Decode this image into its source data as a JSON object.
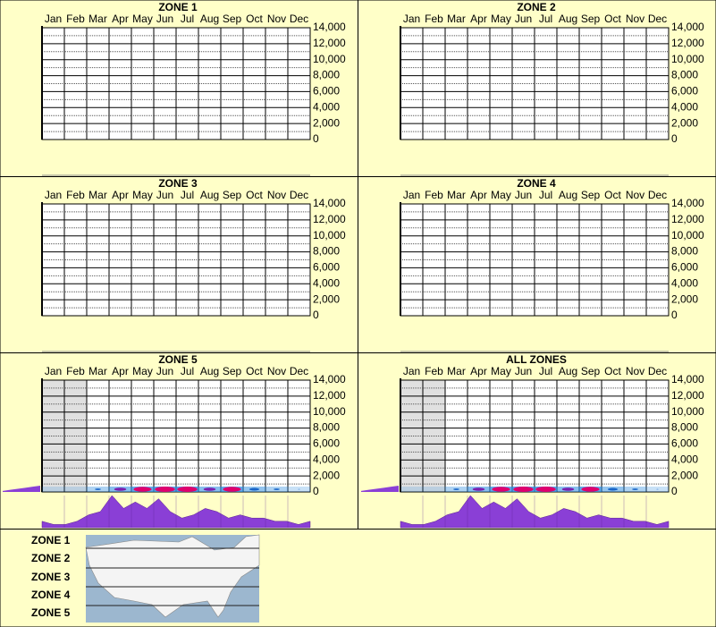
{
  "chart_data": [
    {
      "type": "heatmap",
      "title": "ZONE 1",
      "categories": [
        "Jan",
        "Feb",
        "Mar",
        "Apr",
        "May",
        "Jun",
        "Jul",
        "Aug",
        "Sep",
        "Oct",
        "Nov",
        "Dec"
      ],
      "ylim": [
        0,
        14000
      ],
      "yticks": [
        0,
        {
          "value": 2000,
          "label": "2,000"
        },
        {
          "value": 4000,
          "label": "4,000"
        },
        {
          "value": 6000,
          "label": "6,000"
        },
        {
          "value": 8000,
          "label": "8,000"
        },
        {
          "value": 10000,
          "label": "10,000"
        },
        {
          "value": 12000,
          "label": "12,000"
        },
        {
          "value": 14000,
          "label": "14,000"
        }
      ],
      "grid": true
    },
    {
      "type": "heatmap",
      "title": "ZONE 2",
      "categories": [
        "Jan",
        "Feb",
        "Mar",
        "Apr",
        "May",
        "Jun",
        "Jul",
        "Aug",
        "Sep",
        "Oct",
        "Nov",
        "Dec"
      ],
      "ylim": [
        0,
        14000
      ],
      "yticks": [
        0,
        {
          "value": 2000,
          "label": "2,000"
        },
        {
          "value": 4000,
          "label": "4,000"
        },
        {
          "value": 6000,
          "label": "6,000"
        },
        {
          "value": 8000,
          "label": "8,000"
        },
        {
          "value": 10000,
          "label": "10,000"
        },
        {
          "value": 12000,
          "label": "12,000"
        },
        {
          "value": 14000,
          "label": "14,000"
        }
      ],
      "grid": true
    },
    {
      "type": "heatmap",
      "title": "ZONE 3",
      "categories": [
        "Jan",
        "Feb",
        "Mar",
        "Apr",
        "May",
        "Jun",
        "Jul",
        "Aug",
        "Sep",
        "Oct",
        "Nov",
        "Dec"
      ],
      "ylim": [
        0,
        14000
      ],
      "yticks": [
        0,
        {
          "value": 2000,
          "label": "2,000"
        },
        {
          "value": 4000,
          "label": "4,000"
        },
        {
          "value": 6000,
          "label": "6,000"
        },
        {
          "value": 8000,
          "label": "8,000"
        },
        {
          "value": 10000,
          "label": "10,000"
        },
        {
          "value": 12000,
          "label": "12,000"
        },
        {
          "value": 14000,
          "label": "14,000"
        }
      ],
      "grid": true
    },
    {
      "type": "heatmap",
      "title": "ZONE 4",
      "categories": [
        "Jan",
        "Feb",
        "Mar",
        "Apr",
        "May",
        "Jun",
        "Jul",
        "Aug",
        "Sep",
        "Oct",
        "Nov",
        "Dec"
      ],
      "ylim": [
        0,
        14000
      ],
      "yticks": [
        0,
        {
          "value": 2000,
          "label": "2,000"
        },
        {
          "value": 4000,
          "label": "4,000"
        },
        {
          "value": 6000,
          "label": "6,000"
        },
        {
          "value": 8000,
          "label": "8,000"
        },
        {
          "value": 10000,
          "label": "10,000"
        },
        {
          "value": 12000,
          "label": "12,000"
        },
        {
          "value": 14000,
          "label": "14,000"
        }
      ],
      "grid": true
    },
    {
      "type": "heatmap",
      "title": "ZONE 5",
      "categories": [
        "Jan",
        "Feb",
        "Mar",
        "Apr",
        "May",
        "Jun",
        "Jul",
        "Aug",
        "Sep",
        "Oct",
        "Nov",
        "Dec"
      ],
      "ylim": [
        0,
        14000
      ],
      "yticks": [
        0,
        {
          "value": 2000,
          "label": "2,000"
        },
        {
          "value": 4000,
          "label": "4,000"
        },
        {
          "value": 6000,
          "label": "6,000"
        },
        {
          "value": 8000,
          "label": "8,000"
        },
        {
          "value": 10000,
          "label": "10,000"
        },
        {
          "value": 12000,
          "label": "12,000"
        },
        {
          "value": 14000,
          "label": "14,000"
        }
      ],
      "grid": true,
      "shaded_categories": [
        "Jan",
        "Feb"
      ],
      "surface_intensity": [
        0,
        0,
        0.3,
        0.6,
        0.9,
        1,
        1,
        0.6,
        0.9,
        0.5,
        0.3,
        0.1
      ],
      "monthly_profile": [
        2,
        1,
        1,
        2,
        4,
        5,
        10,
        6,
        8,
        6,
        9,
        5,
        3,
        4,
        6,
        5,
        3,
        4,
        3,
        3,
        2,
        2,
        1,
        2
      ],
      "surface_profile": [
        1,
        2,
        3,
        4,
        5,
        6
      ],
      "color": "#8a3fd6"
    },
    {
      "type": "heatmap",
      "title": "ALL ZONES",
      "categories": [
        "Jan",
        "Feb",
        "Mar",
        "Apr",
        "May",
        "Jun",
        "Jul",
        "Aug",
        "Sep",
        "Oct",
        "Nov",
        "Dec"
      ],
      "ylim": [
        0,
        14000
      ],
      "yticks": [
        0,
        {
          "value": 2000,
          "label": "2,000"
        },
        {
          "value": 4000,
          "label": "4,000"
        },
        {
          "value": 6000,
          "label": "6,000"
        },
        {
          "value": 8000,
          "label": "8,000"
        },
        {
          "value": 10000,
          "label": "10,000"
        },
        {
          "value": 12000,
          "label": "12,000"
        },
        {
          "value": 14000,
          "label": "14,000"
        }
      ],
      "grid": true,
      "shaded_categories": [
        "Jan",
        "Feb"
      ],
      "surface_intensity": [
        0,
        0,
        0.3,
        0.6,
        0.9,
        1,
        1,
        0.6,
        0.9,
        0.5,
        0.3,
        0.1
      ],
      "monthly_profile": [
        2,
        1,
        1,
        2,
        4,
        5,
        10,
        6,
        8,
        6,
        9,
        5,
        3,
        4,
        6,
        5,
        3,
        4,
        3,
        3,
        2,
        2,
        1,
        2
      ],
      "surface_profile": [
        1,
        2,
        3,
        4,
        5,
        6
      ],
      "color": "#8a3fd6"
    }
  ],
  "legend": {
    "zones": [
      "ZONE 1",
      "ZONE 2",
      "ZONE 3",
      "ZONE 4",
      "ZONE 5"
    ]
  }
}
